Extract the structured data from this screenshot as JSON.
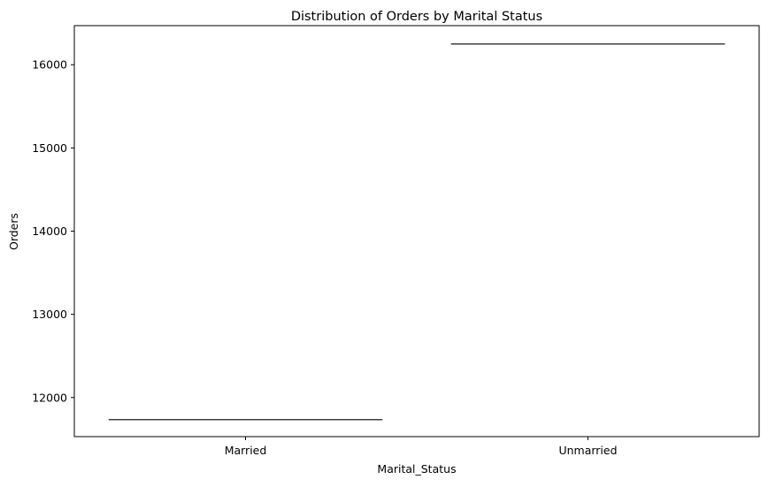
{
  "chart_data": {
    "type": "box",
    "title": "Distribution of Orders by Marital Status",
    "xlabel": "Marital_Status",
    "ylabel": "Orders",
    "categories": [
      "Married",
      "Unmarried"
    ],
    "values": [
      11735,
      16250
    ],
    "ylim": [
      11530,
      16470
    ],
    "yticks": [
      12000,
      13000,
      14000,
      15000,
      16000
    ],
    "ytick_labels": [
      "12000",
      "13000",
      "14000",
      "15000",
      "16000"
    ],
    "grid": false,
    "legend": "none",
    "line_color": "#3f3f3f"
  }
}
